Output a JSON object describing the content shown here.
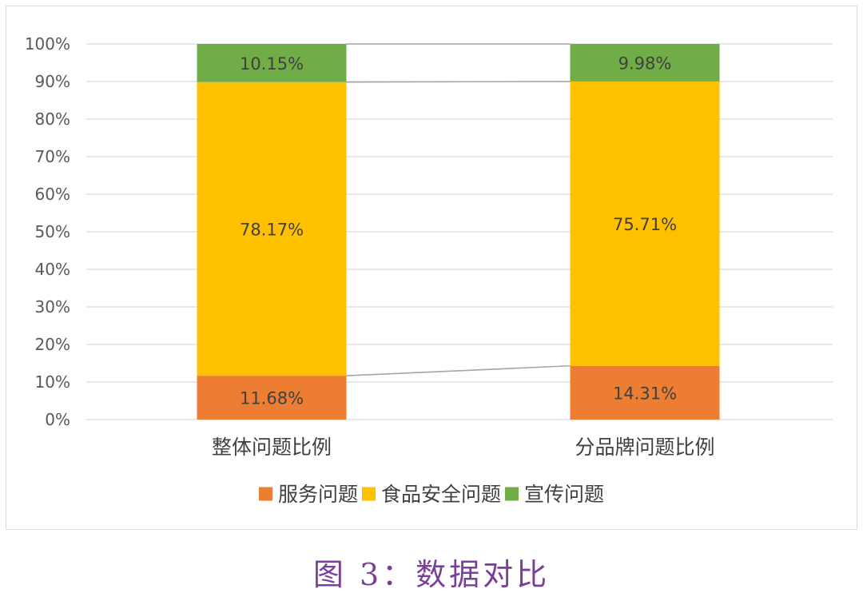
{
  "chart_data": {
    "type": "bar",
    "stacked": true,
    "percent_stacked": true,
    "categories": [
      "整体问题比例",
      "分品牌问题比例"
    ],
    "series": [
      {
        "name": "服务问题",
        "values": [
          11.68,
          14.31
        ],
        "labels": [
          "11.68%",
          "14.31%"
        ],
        "color": "#ED7D31"
      },
      {
        "name": "食品安全问题",
        "values": [
          78.17,
          75.71
        ],
        "labels": [
          "78.17%",
          "75.71%"
        ],
        "color": "#FFC000"
      },
      {
        "name": "宣传问题",
        "values": [
          10.15,
          9.98
        ],
        "labels": [
          "10.15%",
          "9.98%"
        ],
        "color": "#70AD47"
      }
    ],
    "y_ticks": [
      "0%",
      "10%",
      "20%",
      "30%",
      "40%",
      "50%",
      "60%",
      "70%",
      "80%",
      "90%",
      "100%"
    ],
    "ylim": [
      0,
      100
    ],
    "title": "",
    "xlabel": "",
    "ylabel": "",
    "grid": true,
    "series_lines": true,
    "legend": "bottom",
    "gridline_color": "#d9d9d9",
    "series_line_color": "#a6a6a6"
  },
  "caption": "图 3：数据对比"
}
